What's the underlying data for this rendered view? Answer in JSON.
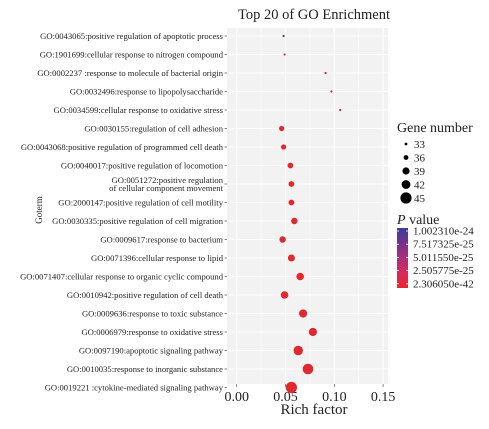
{
  "chart_data": {
    "type": "scatter",
    "title": "Top 20 of GO Enrichment",
    "xlabel": "Rich factor",
    "ylabel": "Goterm",
    "xlim": [
      -0.01,
      0.155
    ],
    "xticks": [
      "0.00",
      "0.05",
      "0.10",
      "0.15"
    ],
    "xtick_values": [
      0,
      0.05,
      0.1,
      0.15
    ],
    "grid": true,
    "legend_position": "right",
    "categories": [
      "GO:0043065:positive regulation of apoptotic process",
      "GO:1901699:cellular response to nitrogen compound",
      "GO:0002237 :response to molecule of bacterial origin",
      "GO:0032496:response to lipopolysaccharide",
      "GO:0034599:cellular response to oxidative stress",
      "GO:0030155:regulation of cell adhesion",
      "GO:0043068:positive regulation of programmed cell death",
      "GO:0040017:positive regulation of locomotion",
      "GO:0051272:positive regulation\nof cellular component movement",
      "GO:2000147:positive regulation of cell motility",
      "GO:0030335:positive regulation of cell migration",
      "GO:0009617:response to bacterium",
      "GO:0071396:cellular response to lipid",
      "GO:0071407:cellular response to organic cyclic compound",
      "GO:0010942:positive regulation of cell death",
      "GO:0009636:response to toxic substance",
      "GO:0006979:response to oxidative stress",
      "GO:0097190:apoptotic signaling pathway",
      "GO:0010035:response to inorganic substance",
      "GO:0019221 :cytokine-mediated signaling pathway"
    ],
    "rich_factor": [
      0.048,
      0.049,
      0.091,
      0.097,
      0.106,
      0.046,
      0.048,
      0.055,
      0.056,
      0.056,
      0.059,
      0.047,
      0.056,
      0.065,
      0.049,
      0.068,
      0.078,
      0.063,
      0.073,
      0.056
    ],
    "gene_number": [
      31,
      31,
      31,
      31,
      31,
      36,
      36,
      37,
      37,
      37,
      38,
      38,
      39,
      40,
      40,
      41,
      41,
      43,
      45,
      46
    ],
    "p_value_color": [
      "#3c3f9a",
      "#e0282e",
      "#e0282e",
      "#e0282e",
      "#e0282e",
      "#e0282e",
      "#e0282e",
      "#e0282e",
      "#e0282e",
      "#e0282e",
      "#e0282e",
      "#e0282e",
      "#e0282e",
      "#e0282e",
      "#e0282e",
      "#e0282e",
      "#e0282e",
      "#e0282e",
      "#e0282e",
      "#e0282e"
    ],
    "size_legend": {
      "title": "Gene number",
      "values": [
        "33",
        "36",
        "39",
        "42",
        "45"
      ]
    },
    "color_legend": {
      "title_italic": "P",
      "title_rest": " value",
      "labels": [
        "1.002310e-24",
        "7.517325e-25",
        "5.011550e-25",
        "2.505775e-25",
        "2.306050e-42"
      ],
      "colors": [
        "#3b3d99",
        "#73348a",
        "#a8307a",
        "#d52c5b",
        "#e8262b"
      ]
    }
  }
}
